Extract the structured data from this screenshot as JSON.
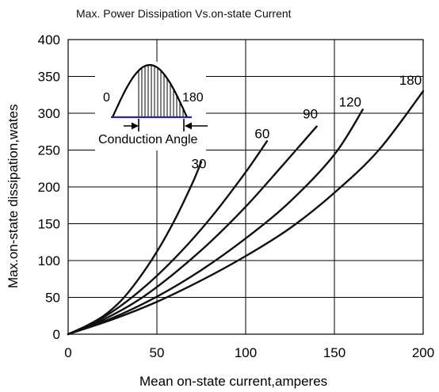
{
  "chart_data": {
    "type": "line",
    "title": "Max. Power Dissipation Vs.on-state  Current",
    "xlabel": "Mean on-state current,amperes",
    "ylabel": "Max.on-state dissipation,wates",
    "xlim": [
      0,
      200
    ],
    "ylim": [
      0,
      400
    ],
    "x_ticks": [
      "0",
      "50",
      "100",
      "150",
      "200"
    ],
    "y_ticks": [
      "0",
      "50",
      "100",
      "150",
      "200",
      "250",
      "300",
      "350",
      "400"
    ],
    "grid": true,
    "series": [
      {
        "name": "30",
        "x": [
          0,
          10,
          20,
          30,
          40,
          50,
          60,
          70,
          75
        ],
        "y": [
          0,
          11,
          25,
          46,
          76,
          112,
          155,
          205,
          234
        ]
      },
      {
        "name": "60",
        "x": [
          0,
          20,
          40,
          60,
          80,
          100,
          112
        ],
        "y": [
          0,
          23,
          58,
          103,
          157,
          220,
          262
        ]
      },
      {
        "name": "90",
        "x": [
          0,
          20,
          40,
          60,
          80,
          100,
          120,
          140
        ],
        "y": [
          0,
          20,
          47,
          83,
          125,
          173,
          227,
          282
        ]
      },
      {
        "name": "120",
        "x": [
          0,
          25,
          50,
          75,
          100,
          125,
          150,
          166
        ],
        "y": [
          0,
          22,
          51,
          87,
          130,
          180,
          244,
          305
        ]
      },
      {
        "name": "180",
        "x": [
          0,
          25,
          50,
          75,
          100,
          125,
          150,
          175,
          200
        ],
        "y": [
          0,
          20,
          44,
          73,
          106,
          144,
          192,
          250,
          330
        ]
      }
    ],
    "inset": {
      "left_label": "0",
      "right_label": "180",
      "caption": "Conduction Angle"
    }
  }
}
